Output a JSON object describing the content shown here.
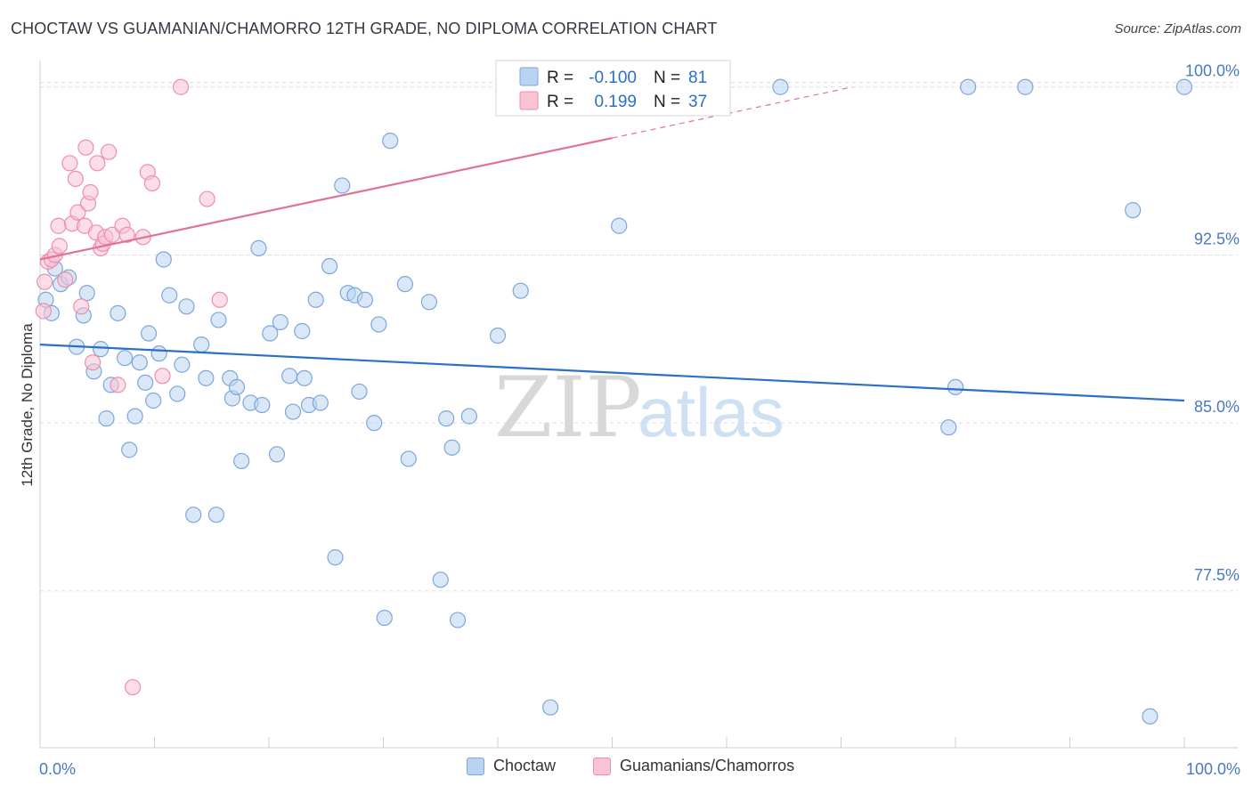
{
  "title": "CHOCTAW VS GUAMANIAN/CHAMORRO 12TH GRADE, NO DIPLOMA CORRELATION CHART",
  "source": "Source: ZipAtlas.com",
  "watermark": {
    "zip": "ZIP",
    "atlas": "atlas"
  },
  "colors": {
    "blue_fill": "#b9d3f1",
    "blue_stroke": "#7da7d9",
    "blue_line": "#2b6fc8",
    "pink_fill": "#f8c3d3",
    "pink_stroke": "#ee8eab",
    "pink_line": "#e2719a",
    "tick_label": "#4a78c0",
    "grid": "#dcdcdc"
  },
  "stats_legend": [
    {
      "r_label": "R =",
      "r_value": "-0.100",
      "n_label": "N =",
      "n_value": "81",
      "series": "Choctaw"
    },
    {
      "r_label": "R =",
      "r_value": "0.199",
      "n_label": "N =",
      "n_value": "37",
      "series": "Guamanians/Chamorros"
    }
  ],
  "chart_data": {
    "type": "scatter",
    "title": "CHOCTAW VS GUAMANIAN/CHAMORRO 12TH GRADE, NO DIPLOMA CORRELATION CHART",
    "xlabel": "",
    "ylabel": "12th Grade, No Diploma",
    "xlim": [
      0,
      100
    ],
    "ylim": [
      70.5,
      101.5
    ],
    "x_tick_labels": [
      "0.0%",
      "100.0%"
    ],
    "y_ticks": [
      77.5,
      85.0,
      92.5,
      100.0
    ],
    "y_tick_labels": [
      "77.5%",
      "85.0%",
      "92.5%",
      "100.0%"
    ],
    "grid": true,
    "legend_position": "bottom",
    "series": [
      {
        "name": "Choctaw",
        "trend": {
          "x": [
            0,
            100
          ],
          "y": [
            88.5,
            86.0
          ]
        },
        "points": [
          [
            0.5,
            90.5
          ],
          [
            1.0,
            89.9
          ],
          [
            1.3,
            91.9
          ],
          [
            1.8,
            91.2
          ],
          [
            2.5,
            91.5
          ],
          [
            3.2,
            88.4
          ],
          [
            3.8,
            89.8
          ],
          [
            4.1,
            90.8
          ],
          [
            4.7,
            87.3
          ],
          [
            5.3,
            88.3
          ],
          [
            5.8,
            85.2
          ],
          [
            6.2,
            86.7
          ],
          [
            6.8,
            89.9
          ],
          [
            7.4,
            87.9
          ],
          [
            7.8,
            83.8
          ],
          [
            8.3,
            85.3
          ],
          [
            8.7,
            87.7
          ],
          [
            9.2,
            86.8
          ],
          [
            9.5,
            89.0
          ],
          [
            9.9,
            86.0
          ],
          [
            10.4,
            88.1
          ],
          [
            10.8,
            92.3
          ],
          [
            11.3,
            90.7
          ],
          [
            12.0,
            86.3
          ],
          [
            12.4,
            87.6
          ],
          [
            12.8,
            90.2
          ],
          [
            13.4,
            80.9
          ],
          [
            14.1,
            88.5
          ],
          [
            14.5,
            87.0
          ],
          [
            15.4,
            80.9
          ],
          [
            15.6,
            89.6
          ],
          [
            16.6,
            87.0
          ],
          [
            16.8,
            86.1
          ],
          [
            17.2,
            86.6
          ],
          [
            17.6,
            83.3
          ],
          [
            18.4,
            85.9
          ],
          [
            19.1,
            92.8
          ],
          [
            19.4,
            85.8
          ],
          [
            20.1,
            89.0
          ],
          [
            20.7,
            83.6
          ],
          [
            21.0,
            89.5
          ],
          [
            21.8,
            87.1
          ],
          [
            22.1,
            85.5
          ],
          [
            22.9,
            89.1
          ],
          [
            23.1,
            87.0
          ],
          [
            23.5,
            85.8
          ],
          [
            24.1,
            90.5
          ],
          [
            24.5,
            85.9
          ],
          [
            25.3,
            92.0
          ],
          [
            25.8,
            79.0
          ],
          [
            26.4,
            95.6
          ],
          [
            26.9,
            90.8
          ],
          [
            27.5,
            90.7
          ],
          [
            27.9,
            86.4
          ],
          [
            28.4,
            90.5
          ],
          [
            29.2,
            85.0
          ],
          [
            29.6,
            89.4
          ],
          [
            30.1,
            76.3
          ],
          [
            30.6,
            97.6
          ],
          [
            31.9,
            91.2
          ],
          [
            32.2,
            83.4
          ],
          [
            34.0,
            90.4
          ],
          [
            35.0,
            78.0
          ],
          [
            35.5,
            85.2
          ],
          [
            36.0,
            83.9
          ],
          [
            36.5,
            76.2
          ],
          [
            37.5,
            85.3
          ],
          [
            40.0,
            88.9
          ],
          [
            42.0,
            90.9
          ],
          [
            44.6,
            72.3
          ],
          [
            45.4,
            100.0
          ],
          [
            50.6,
            93.8
          ],
          [
            58.8,
            100.0
          ],
          [
            64.7,
            100.0
          ],
          [
            79.4,
            84.8
          ],
          [
            80.0,
            86.6
          ],
          [
            81.1,
            100.0
          ],
          [
            86.1,
            100.0
          ],
          [
            95.5,
            94.5
          ],
          [
            97.0,
            71.9
          ],
          [
            100.0,
            100.0
          ]
        ]
      },
      {
        "name": "Guamanians/Chamorros",
        "trend": {
          "x": [
            0,
            71
          ],
          "y": [
            92.3,
            100.0
          ]
        },
        "points": [
          [
            0.3,
            90.0
          ],
          [
            0.4,
            91.3
          ],
          [
            0.7,
            92.2
          ],
          [
            1.0,
            92.3
          ],
          [
            1.3,
            92.5
          ],
          [
            1.6,
            93.8
          ],
          [
            1.7,
            92.9
          ],
          [
            2.2,
            91.4
          ],
          [
            2.6,
            96.6
          ],
          [
            2.8,
            93.9
          ],
          [
            3.1,
            95.9
          ],
          [
            3.3,
            94.4
          ],
          [
            3.6,
            90.2
          ],
          [
            3.9,
            93.8
          ],
          [
            4.0,
            97.3
          ],
          [
            4.2,
            94.8
          ],
          [
            4.4,
            95.3
          ],
          [
            4.6,
            87.7
          ],
          [
            4.9,
            93.5
          ],
          [
            5.0,
            96.6
          ],
          [
            5.3,
            92.8
          ],
          [
            5.5,
            93.0
          ],
          [
            5.7,
            93.3
          ],
          [
            6.0,
            97.1
          ],
          [
            6.3,
            93.4
          ],
          [
            6.8,
            86.7
          ],
          [
            7.2,
            93.8
          ],
          [
            7.6,
            93.4
          ],
          [
            8.1,
            73.2
          ],
          [
            9.0,
            93.3
          ],
          [
            9.4,
            96.2
          ],
          [
            9.8,
            95.7
          ],
          [
            10.7,
            87.1
          ],
          [
            12.3,
            100.0
          ],
          [
            14.6,
            95.0
          ],
          [
            15.7,
            90.5
          ],
          [
            47.5,
            100.0
          ]
        ]
      }
    ]
  },
  "bottom_legend": [
    "Choctaw",
    "Guamanians/Chamorros"
  ]
}
